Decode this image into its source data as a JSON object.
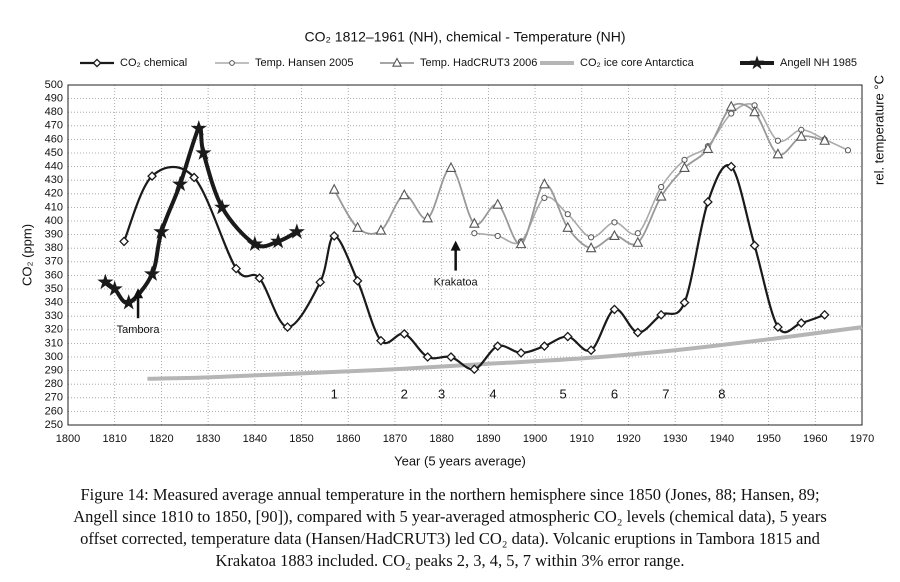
{
  "chart_data": {
    "type": "line",
    "title": "CO₂ 1812–1961 (NH), chemical - Temperature (NH)",
    "x_label": "Year (5 years average)",
    "y_label": "CO₂ (ppm)",
    "y2_label": "rel. temperature °C",
    "xlim": [
      1800,
      1970
    ],
    "xticks": [
      1800,
      1810,
      1820,
      1830,
      1840,
      1850,
      1860,
      1870,
      1880,
      1890,
      1900,
      1910,
      1920,
      1930,
      1940,
      1950,
      1960,
      1970
    ],
    "ylim": [
      250,
      500
    ],
    "yticks": [
      250,
      260,
      270,
      280,
      290,
      300,
      310,
      320,
      330,
      340,
      350,
      360,
      370,
      380,
      390,
      400,
      410,
      420,
      430,
      440,
      450,
      460,
      470,
      480,
      490,
      500
    ],
    "grid": true,
    "legend": "top",
    "series": [
      {
        "name": "CO₂ chemical",
        "color": "#1a1a1a",
        "width": 2.2,
        "marker": "diamond",
        "x": [
          1812,
          1818,
          1827,
          1836,
          1841,
          1847,
          1854,
          1857,
          1862,
          1867,
          1872,
          1877,
          1882,
          1887,
          1892,
          1897,
          1902,
          1907,
          1912,
          1917,
          1922,
          1927,
          1932,
          1937,
          1942,
          1947,
          1952,
          1957,
          1962
        ],
        "values": [
          385,
          433,
          432,
          365,
          358,
          322,
          355,
          389,
          356,
          312,
          317,
          300,
          300,
          291,
          308,
          303,
          308,
          315,
          305,
          335,
          318,
          331,
          340,
          414,
          440,
          382,
          322,
          325,
          331
        ]
      },
      {
        "name": "Temp. Hansen 2005",
        "color": "#aaaaaa",
        "width": 1.6,
        "marker": "circle",
        "x": [
          1887,
          1892,
          1897,
          1902,
          1907,
          1912,
          1917,
          1922,
          1927,
          1932,
          1937,
          1942,
          1947,
          1952,
          1957,
          1962,
          1967
        ],
        "values": [
          391,
          389,
          385,
          417,
          405,
          388,
          399,
          391,
          425,
          445,
          455,
          479,
          485,
          459,
          467,
          460,
          452
        ]
      },
      {
        "name": "Temp. HadCRUT3 2006",
        "color": "#999999",
        "width": 1.8,
        "marker": "triangle",
        "x": [
          1857,
          1862,
          1867,
          1872,
          1877,
          1882,
          1887,
          1892,
          1897,
          1902,
          1907,
          1912,
          1917,
          1922,
          1927,
          1932,
          1937,
          1942,
          1947,
          1952,
          1957,
          1962
        ],
        "values": [
          423,
          395,
          393,
          419,
          402,
          439,
          398,
          412,
          383,
          427,
          395,
          380,
          389,
          384,
          418,
          439,
          453,
          484,
          480,
          449,
          462,
          459
        ]
      },
      {
        "name": "CO₂ ice core Antarctica",
        "color": "#b5b5b5",
        "width": 4,
        "marker": "none",
        "x": [
          1817,
          1830,
          1850,
          1870,
          1890,
          1910,
          1930,
          1950,
          1970
        ],
        "values": [
          284,
          285,
          288,
          291,
          295,
          299,
          305,
          313,
          322
        ]
      },
      {
        "name": "Angell NH 1985",
        "color": "#1a1a1a",
        "width": 4,
        "marker": "star",
        "x": [
          1808,
          1810,
          1813,
          1818,
          1820,
          1824,
          1828,
          1829,
          1833,
          1840,
          1845,
          1849
        ],
        "values": [
          355,
          350,
          340,
          361,
          392,
          427,
          468,
          450,
          410,
          383,
          385,
          392
        ]
      }
    ],
    "annotations": [
      {
        "text": "Tambora",
        "x": 1815,
        "y": 330,
        "arrow": true
      },
      {
        "text": "Krakatoa",
        "x": 1883,
        "y": 365,
        "arrow": true
      },
      {
        "text": "1",
        "x": 1857,
        "y": 272
      },
      {
        "text": "2",
        "x": 1872,
        "y": 272
      },
      {
        "text": "3",
        "x": 1880,
        "y": 272
      },
      {
        "text": "4",
        "x": 1891,
        "y": 272
      },
      {
        "text": "5",
        "x": 1906,
        "y": 272
      },
      {
        "text": "6",
        "x": 1917,
        "y": 272
      },
      {
        "text": "7",
        "x": 1928,
        "y": 272
      },
      {
        "text": "8",
        "x": 1940,
        "y": 272
      }
    ],
    "caption": [
      "Figure 14: Measured average annual temperature in the northern hemisphere since 1850 (Jones, 88; Hansen, 89;",
      "Angell since 1810 to 1850, [90]), compared with 5 year-averaged atmospheric CO₂ levels (chemical data), 5 years",
      "offset corrected, temperature data (Hansen/HadCRUT3) led CO₂ data). Volcanic eruptions in Tambora 1815 and",
      "Krakatoa 1883 included. CO₂ peaks 2, 3, 4, 5, 7 within 3% error range."
    ]
  }
}
